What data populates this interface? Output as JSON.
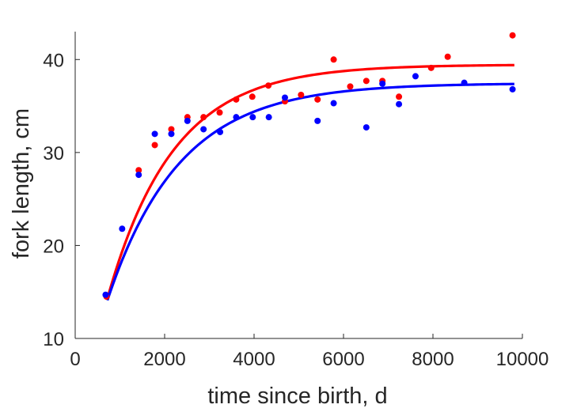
{
  "chart_data": {
    "type": "scatter",
    "xlabel": "time since birth, d",
    "ylabel": "fork length, cm",
    "xlim": [
      0,
      10000
    ],
    "ylim": [
      10,
      43
    ],
    "xticks": [
      0,
      2000,
      4000,
      6000,
      8000,
      10000
    ],
    "yticks": [
      10,
      20,
      30,
      40
    ],
    "grid": false,
    "colors": {
      "red": "#ff0000",
      "blue": "#0000ff",
      "axis": "#262626"
    },
    "series": [
      {
        "color": "#ff0000",
        "points": [
          [
            700,
            14.5
          ],
          [
            1420,
            28.1
          ],
          [
            1780,
            30.8
          ],
          [
            2150,
            32.5
          ],
          [
            2510,
            33.8
          ],
          [
            2870,
            33.8
          ],
          [
            3230,
            34.3
          ],
          [
            3600,
            35.7
          ],
          [
            3960,
            36.0
          ],
          [
            4320,
            37.2
          ],
          [
            4690,
            35.5
          ],
          [
            5050,
            36.2
          ],
          [
            5420,
            35.7
          ],
          [
            5780,
            40.0
          ],
          [
            6150,
            37.1
          ],
          [
            6510,
            37.7
          ],
          [
            6870,
            37.7
          ],
          [
            7240,
            36.0
          ],
          [
            7960,
            39.1
          ],
          [
            8330,
            40.3
          ],
          [
            9780,
            42.6
          ]
        ],
        "fit": {
          "Linf": 39.45,
          "L0": 14.3,
          "k": 0.00068,
          "t0": 720,
          "t1": 9820
        }
      },
      {
        "color": "#0000ff",
        "points": [
          [
            680,
            14.7
          ],
          [
            1050,
            21.8
          ],
          [
            1420,
            27.6
          ],
          [
            1780,
            32.0
          ],
          [
            2150,
            32.0
          ],
          [
            2510,
            33.4
          ],
          [
            2870,
            32.5
          ],
          [
            3240,
            32.2
          ],
          [
            3600,
            33.8
          ],
          [
            3970,
            33.8
          ],
          [
            4330,
            33.8
          ],
          [
            4690,
            35.9
          ],
          [
            5420,
            33.4
          ],
          [
            5780,
            35.3
          ],
          [
            6510,
            32.7
          ],
          [
            6870,
            37.4
          ],
          [
            7240,
            35.2
          ],
          [
            7610,
            38.2
          ],
          [
            8700,
            37.5
          ],
          [
            9780,
            36.8
          ]
        ],
        "fit": {
          "Linf": 37.45,
          "L0": 14.1,
          "k": 0.00062,
          "t0": 720,
          "t1": 9820
        }
      }
    ]
  }
}
